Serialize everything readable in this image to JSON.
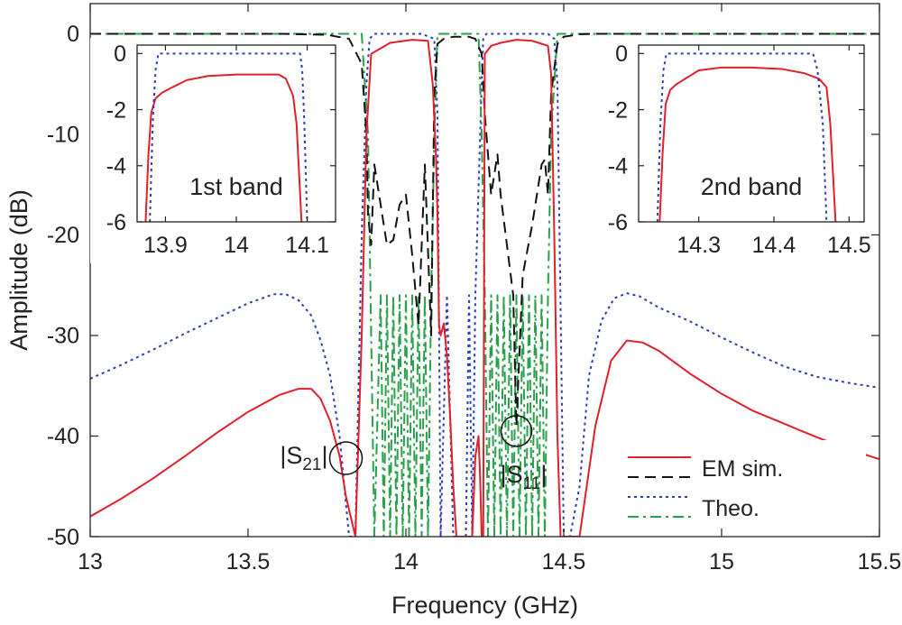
{
  "chart_data": [
    {
      "type": "line",
      "title": "",
      "xlabel": "Frequency (GHz)",
      "ylabel": "Amplitude (dB)",
      "xlim": [
        13,
        15.5
      ],
      "ylim": [
        -50,
        3
      ],
      "xticks": [
        13,
        13.5,
        14,
        14.5,
        15,
        15.5
      ],
      "xtick_labels": [
        "13",
        "13.5",
        "14",
        "14.5",
        "15",
        "15.5"
      ],
      "yticks": [
        0,
        -10,
        -20,
        -30,
        -40,
        -50
      ],
      "ytick_labels": [
        "0",
        "-10",
        "-20",
        "-30",
        "-40",
        "-50"
      ],
      "grid": false,
      "legend_position": "bottom-right",
      "legend": [
        {
          "label": "EM sim.",
          "color": "#e0202a",
          "dash": "solid"
        },
        {
          "label": "",
          "color": "#111111",
          "dash": "dashed"
        },
        {
          "label": "Theo.",
          "color": "#2a3db8",
          "dash": "dotted"
        },
        {
          "label": "",
          "color": "#2aa04a",
          "dash": "dashdot"
        }
      ],
      "annotations": [
        {
          "text_main": "|S",
          "text_sub": "21",
          "text_end": "|",
          "circle_at": [
            13.81,
            -42.2
          ]
        },
        {
          "text_main": "|S",
          "text_sub": "11",
          "text_end": "|",
          "circle_at": [
            14.35,
            -39.5
          ]
        }
      ],
      "series": [
        {
          "role": "em_s21",
          "color": "#e0202a",
          "dash": "solid",
          "x": [
            13.0,
            13.1,
            13.2,
            13.3,
            13.4,
            13.5,
            13.6,
            13.66,
            13.7,
            13.73,
            13.76,
            13.79,
            13.81,
            13.84,
            13.86,
            13.875,
            13.89,
            13.95,
            14.02,
            14.07,
            14.085,
            14.095,
            14.1,
            14.105,
            14.11,
            14.12,
            14.13,
            14.14,
            14.15,
            14.16,
            14.17,
            14.19,
            14.2,
            14.21,
            14.22,
            14.23,
            14.235,
            14.24,
            14.245,
            14.25,
            14.27,
            14.3,
            14.35,
            14.4,
            14.45,
            14.46,
            14.47,
            14.48,
            14.49,
            14.5,
            14.51,
            14.52,
            14.53,
            14.55,
            14.6,
            14.65,
            14.7,
            14.75,
            14.8,
            14.9,
            15.0,
            15.1,
            15.2,
            15.3,
            15.4,
            15.5
          ],
          "y": [
            -48,
            -46.2,
            -44.2,
            -42,
            -39.7,
            -37.6,
            -35.9,
            -35.3,
            -35.3,
            -36.3,
            -38.5,
            -42,
            -46,
            -50,
            -30,
            -10,
            -2,
            -0.9,
            -0.6,
            -0.7,
            -5,
            -12,
            -18,
            -29,
            -30,
            -28.8,
            -32,
            -38,
            -45,
            -50,
            -50,
            -50,
            -50,
            -50,
            -42,
            -40,
            -44,
            -50,
            -50,
            -2,
            -1.2,
            -0.9,
            -0.6,
            -0.7,
            -1.2,
            -4,
            -20,
            -40,
            -50,
            -50,
            -50,
            -50,
            -50,
            -50,
            -39,
            -32.5,
            -30.5,
            -30.7,
            -31.5,
            -33.8,
            -35.8,
            -37.5,
            -38.8,
            -40.1,
            -41.3,
            -42.3
          ]
        },
        {
          "role": "em_s11",
          "color": "#111111",
          "dash": "dashed",
          "x": [
            13.0,
            13.3,
            13.6,
            13.75,
            13.82,
            13.86,
            13.875,
            13.88,
            13.89,
            13.9,
            13.92,
            13.94,
            13.96,
            13.98,
            14.0,
            14.02,
            14.04,
            14.06,
            14.08,
            14.09,
            14.1,
            14.12,
            14.15,
            14.2,
            14.22,
            14.24,
            14.25,
            14.27,
            14.29,
            14.3,
            14.32,
            14.34,
            14.35,
            14.37,
            14.4,
            14.43,
            14.44,
            14.45,
            14.46,
            14.48,
            14.5,
            14.55,
            14.6,
            15.0,
            15.5
          ],
          "y": [
            0,
            0,
            0,
            -0.1,
            -0.5,
            -3,
            -10,
            -18,
            -21,
            -13,
            -17,
            -21,
            -20.5,
            -17,
            -16,
            -22,
            -29,
            -13,
            -30,
            -6,
            -1,
            -0.5,
            -0.3,
            -0.3,
            -0.5,
            -2,
            -8,
            -16,
            -12,
            -16,
            -21,
            -26,
            -39,
            -24,
            -19,
            -13,
            -12.5,
            -16,
            -6,
            -1,
            -0.3,
            -0.05,
            0,
            0,
            0
          ]
        },
        {
          "role": "theo_s21",
          "color": "#2a3db8",
          "dash": "dotted",
          "x": [
            13.0,
            13.1,
            13.2,
            13.3,
            13.4,
            13.5,
            13.58,
            13.62,
            13.66,
            13.7,
            13.73,
            13.76,
            13.79,
            13.82,
            13.84,
            13.86,
            13.875,
            13.885,
            13.9,
            13.95,
            14.0,
            14.05,
            14.09,
            14.1,
            14.11,
            14.13,
            14.15,
            14.17,
            14.19,
            14.2,
            14.21,
            14.22,
            14.24,
            14.245,
            14.255,
            14.27,
            14.3,
            14.35,
            14.4,
            14.45,
            14.47,
            14.48,
            14.5,
            14.52,
            14.55,
            14.58,
            14.62,
            14.66,
            14.7,
            14.74,
            14.8,
            14.9,
            15.0,
            15.1,
            15.2,
            15.3,
            15.4,
            15.5
          ],
          "y": [
            -34.3,
            -32.9,
            -31.4,
            -29.8,
            -28.3,
            -26.8,
            -25.9,
            -25.9,
            -26.5,
            -28,
            -30.5,
            -34,
            -40,
            -50,
            -50,
            -20,
            -5,
            -0.5,
            0,
            0,
            0,
            0,
            -0.5,
            -8,
            -50,
            -26,
            -50,
            -50,
            -50,
            -26,
            -50,
            -26,
            -5,
            -0.5,
            0,
            0,
            0,
            0,
            0,
            0,
            -0.5,
            -5,
            -50,
            -50,
            -45,
            -34,
            -28.5,
            -26.3,
            -25.8,
            -26.1,
            -27.2,
            -28.6,
            -30.2,
            -31.7,
            -33.1,
            -34.1,
            -34.7,
            -35.2
          ]
        },
        {
          "role": "theo_s11",
          "color": "#2aa04a",
          "dash": "dashdot",
          "x": [
            13.0,
            13.86,
            13.88,
            13.9,
            13.92,
            13.93,
            13.94,
            13.95,
            13.96,
            13.97,
            13.98,
            13.99,
            14.0,
            14.01,
            14.02,
            14.03,
            14.04,
            14.05,
            14.06,
            14.07,
            14.08,
            14.09,
            14.1,
            14.12,
            14.2,
            14.23,
            14.24,
            14.25,
            14.26,
            14.27,
            14.28,
            14.29,
            14.3,
            14.31,
            14.32,
            14.33,
            14.34,
            14.35,
            14.36,
            14.37,
            14.38,
            14.39,
            14.4,
            14.41,
            14.42,
            14.43,
            14.44,
            14.45,
            14.46,
            14.48,
            15.5
          ],
          "y": [
            0,
            0,
            -10,
            -50,
            -26,
            -50,
            -26,
            -50,
            -26,
            -50,
            -26,
            -50,
            -26,
            -50,
            -26,
            -50,
            -26,
            -50,
            -26,
            -50,
            -26,
            -10,
            0,
            0,
            0,
            0,
            -10,
            -26,
            -50,
            -26,
            -50,
            -26,
            -50,
            -26,
            -50,
            -26,
            -50,
            -26,
            -50,
            -26,
            -50,
            -26,
            -50,
            -26,
            -50,
            -26,
            -50,
            -26,
            -10,
            0,
            0
          ]
        }
      ]
    },
    {
      "type": "line",
      "title": "1st band",
      "xlim": [
        13.86,
        14.14
      ],
      "ylim": [
        -6,
        0.3
      ],
      "xticks": [
        13.9,
        14,
        14.1
      ],
      "xtick_labels": [
        "13.9",
        "14",
        "14.1"
      ],
      "yticks": [
        0,
        -2,
        -4,
        -6
      ],
      "ytick_labels": [
        "0",
        "-2",
        "-4",
        "-6"
      ],
      "series": [
        {
          "role": "em_s21",
          "color": "#e0202a",
          "dash": "solid",
          "x": [
            13.872,
            13.876,
            13.88,
            13.886,
            13.895,
            13.91,
            13.93,
            13.96,
            14.0,
            14.04,
            14.06,
            14.07,
            14.08,
            14.085,
            14.088,
            14.092
          ],
          "y": [
            -6,
            -3.6,
            -2.1,
            -1.6,
            -1.4,
            -1.2,
            -0.95,
            -0.8,
            -0.75,
            -0.75,
            -0.75,
            -0.9,
            -1.5,
            -2.5,
            -4,
            -6
          ]
        },
        {
          "role": "theo_s21",
          "color": "#2a3db8",
          "dash": "dotted",
          "x": [
            13.878,
            13.882,
            13.886,
            13.89,
            13.9,
            14.0,
            14.09,
            14.093,
            14.096,
            14.1
          ],
          "y": [
            -6,
            -2.5,
            -0.6,
            0,
            0,
            0,
            0,
            -0.6,
            -2.5,
            -6
          ]
        }
      ]
    },
    {
      "type": "line",
      "title": "2nd band",
      "xlim": [
        14.22,
        14.52
      ],
      "ylim": [
        -6,
        0.3
      ],
      "xticks": [
        14.3,
        14.4,
        14.5
      ],
      "xtick_labels": [
        "14.3",
        "14.4",
        "14.5"
      ],
      "yticks": [
        0,
        -2,
        -4,
        -6
      ],
      "ytick_labels": [
        "0",
        "-2",
        "-4",
        "-6"
      ],
      "series": [
        {
          "role": "em_s21",
          "color": "#e0202a",
          "dash": "solid",
          "x": [
            14.248,
            14.252,
            14.256,
            14.262,
            14.27,
            14.285,
            14.3,
            14.33,
            14.37,
            14.41,
            14.44,
            14.46,
            14.47,
            14.475,
            14.478,
            14.482
          ],
          "y": [
            -6,
            -3.5,
            -1.8,
            -1.3,
            -1.1,
            -0.85,
            -0.6,
            -0.5,
            -0.5,
            -0.55,
            -0.7,
            -0.9,
            -1.2,
            -2.5,
            -4,
            -6
          ]
        },
        {
          "role": "theo_s21",
          "color": "#2a3db8",
          "dash": "dotted",
          "x": [
            14.245,
            14.249,
            14.253,
            14.257,
            14.27,
            14.4,
            14.452,
            14.458,
            14.465,
            14.47
          ],
          "y": [
            -6,
            -2.5,
            -0.6,
            0,
            0,
            0,
            0,
            -0.6,
            -2.5,
            -6
          ]
        }
      ]
    }
  ]
}
